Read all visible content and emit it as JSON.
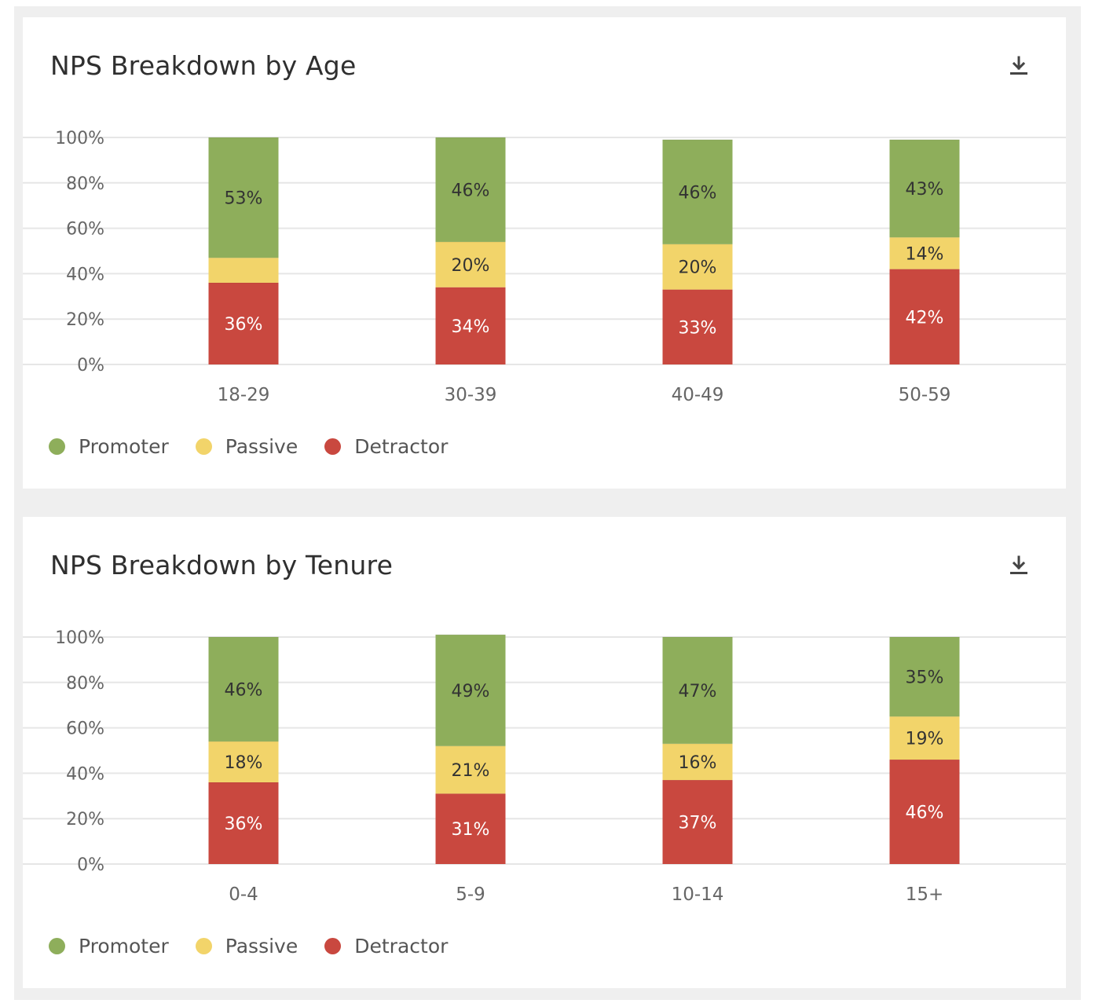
{
  "colors": {
    "promoter": "#8eae5b",
    "passive": "#f2d46a",
    "detractor": "#c9483f",
    "grid": "#e6e6e6",
    "axis_text": "#666666"
  },
  "icons": {
    "download": "download-icon"
  },
  "charts": [
    {
      "id": "age",
      "title": "NPS Breakdown by Age",
      "legend": [
        "Promoter",
        "Passive",
        "Detractor"
      ]
    },
    {
      "id": "tenure",
      "title": "NPS Breakdown by Tenure",
      "legend": [
        "Promoter",
        "Passive",
        "Detractor"
      ]
    }
  ],
  "chart_data": [
    {
      "type": "bar",
      "stacked": true,
      "title": "NPS Breakdown by Age",
      "categories": [
        "18-29",
        "30-39",
        "40-49",
        "50-59"
      ],
      "yticks": [
        "0%",
        "20%",
        "40%",
        "60%",
        "80%",
        "100%"
      ],
      "ylim": [
        0,
        100
      ],
      "legend_position": "bottom-left",
      "grid": true,
      "series": [
        {
          "name": "Detractor",
          "values": [
            36,
            34,
            33,
            42
          ],
          "labels": [
            "36%",
            "34%",
            "33%",
            "42%"
          ]
        },
        {
          "name": "Passive",
          "values": [
            11,
            20,
            20,
            14
          ],
          "labels": [
            "",
            "20%",
            "20%",
            "14%"
          ]
        },
        {
          "name": "Promoter",
          "values": [
            53,
            46,
            46,
            43
          ],
          "labels": [
            "53%",
            "46%",
            "46%",
            "43%"
          ]
        }
      ]
    },
    {
      "type": "bar",
      "stacked": true,
      "title": "NPS Breakdown by Tenure",
      "categories": [
        "0-4",
        "5-9",
        "10-14",
        "15+"
      ],
      "yticks": [
        "0%",
        "20%",
        "40%",
        "60%",
        "80%",
        "100%"
      ],
      "ylim": [
        0,
        100
      ],
      "legend_position": "bottom-left",
      "grid": true,
      "series": [
        {
          "name": "Detractor",
          "values": [
            36,
            31,
            37,
            46
          ],
          "labels": [
            "36%",
            "31%",
            "37%",
            "46%"
          ]
        },
        {
          "name": "Passive",
          "values": [
            18,
            21,
            16,
            19
          ],
          "labels": [
            "18%",
            "21%",
            "16%",
            "19%"
          ]
        },
        {
          "name": "Promoter",
          "values": [
            46,
            49,
            47,
            35
          ],
          "labels": [
            "46%",
            "49%",
            "47%",
            "35%"
          ]
        }
      ]
    }
  ]
}
